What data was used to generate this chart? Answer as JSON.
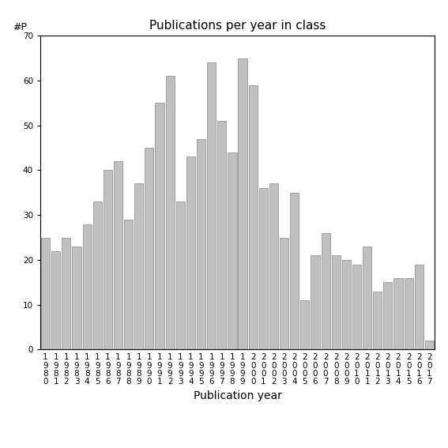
{
  "years": [
    "1980",
    "1981",
    "1982",
    "1983",
    "1984",
    "1985",
    "1986",
    "1987",
    "1988",
    "1989",
    "1990",
    "1991",
    "1992",
    "1993",
    "1994",
    "1995",
    "1996",
    "1997",
    "1998",
    "1999",
    "2000",
    "2001",
    "2002",
    "2003",
    "2004",
    "2005",
    "2006",
    "2007",
    "2008",
    "2009",
    "2010",
    "2011",
    "2012",
    "2013",
    "2014",
    "2015",
    "2016",
    "2017"
  ],
  "values": [
    25,
    22,
    25,
    23,
    28,
    33,
    40,
    42,
    29,
    37,
    45,
    55,
    61,
    33,
    43,
    47,
    64,
    51,
    44,
    65,
    59,
    36,
    37,
    25,
    35,
    11,
    21,
    26,
    21,
    20,
    19,
    23,
    13,
    15,
    16,
    16,
    19,
    2
  ],
  "bar_color": "#c0c0c0",
  "bar_edge_color": "#888888",
  "title": "Publications per year in class",
  "xlabel": "Publication year",
  "ylabel_label": "#P",
  "ylim": [
    0,
    70
  ],
  "yticks": [
    0,
    10,
    20,
    30,
    40,
    50,
    60,
    70
  ],
  "background_color": "#ffffff",
  "title_fontsize": 11,
  "axis_label_fontsize": 10,
  "tick_fontsize": 7.5,
  "ylabel_fontsize": 9
}
